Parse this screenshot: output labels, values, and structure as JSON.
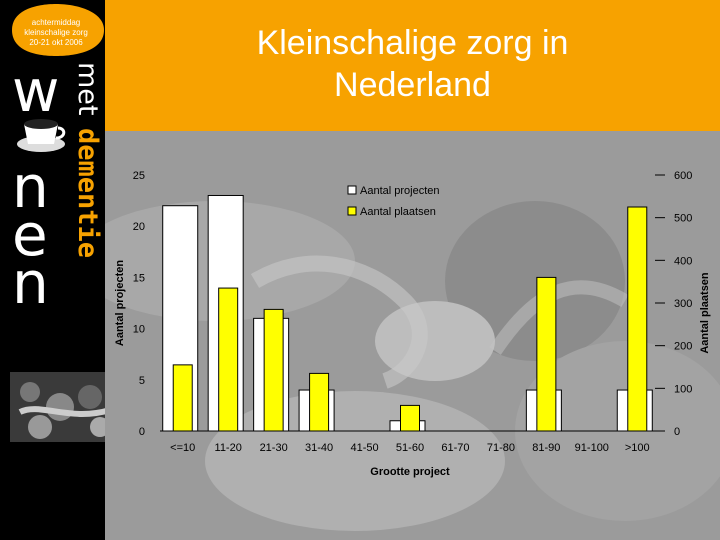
{
  "badge": {
    "lines": [
      "achtermiddag",
      "kleinschalige zorg",
      "20-21 okt 2006"
    ]
  },
  "logo": {
    "letters": [
      "w",
      "o",
      "n",
      "e",
      "n"
    ],
    "word_met": "met",
    "word_dementie": "dementie"
  },
  "slide": {
    "title_line1": "Kleinschalige zorg in",
    "title_line2": "Nederland"
  },
  "colors": {
    "header": "#f7a200",
    "projects_bar": "#ffffff",
    "places_bar": "#ffff00",
    "sidebar": "#000000",
    "dementie": "#f7a200"
  },
  "chart_data": {
    "type": "bar",
    "categories": [
      "<=10",
      "11-20",
      "21-30",
      "31-40",
      "41-50",
      "51-60",
      "61-70",
      "71-80",
      "81-90",
      "91-100",
      ">100"
    ],
    "series": [
      {
        "name": "Aantal projecten",
        "axis": "left",
        "values": [
          22,
          23,
          11,
          4,
          0,
          1,
          0,
          0,
          4,
          0,
          4
        ]
      },
      {
        "name": "Aantal plaatsen",
        "axis": "right",
        "values": [
          155,
          335,
          285,
          135,
          0,
          60,
          0,
          0,
          360,
          0,
          525
        ]
      }
    ],
    "xlabel": "Grootte project",
    "ylabel": "Aantal projecten",
    "y2label": "Aantal plaatsen",
    "ylim": [
      0,
      25
    ],
    "y2lim": [
      0,
      600
    ],
    "yticks": [
      "0",
      "5",
      "10",
      "15",
      "20",
      "25"
    ],
    "y2ticks": [
      "0",
      "100",
      "200",
      "300",
      "400",
      "500",
      "600"
    ],
    "legend": [
      "Aantal projecten",
      "Aantal plaatsen"
    ],
    "legend_position": "top-right",
    "grid": false
  }
}
